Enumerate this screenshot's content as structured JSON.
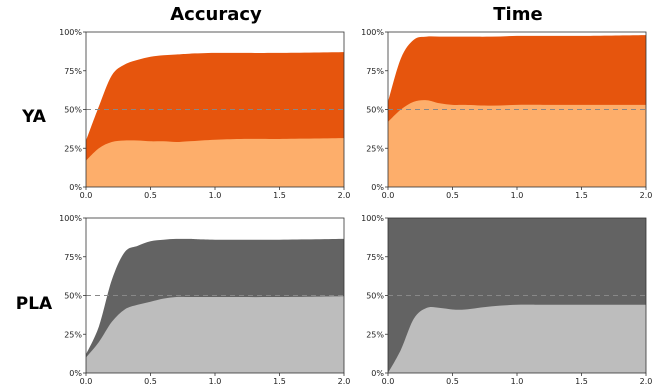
{
  "col_titles": [
    "Accuracy",
    "Time"
  ],
  "row_labels": [
    "YA",
    "PLA"
  ],
  "chart_data": [
    {
      "type": "area",
      "stacking": "percent",
      "column": "Accuracy",
      "row": "YA",
      "x": [
        0.0,
        0.1,
        0.2,
        0.3,
        0.4,
        0.5,
        0.6,
        0.7,
        0.8,
        1.0,
        1.2,
        1.5,
        2.0
      ],
      "lower": [
        17,
        25,
        29,
        30,
        30,
        29.5,
        29.5,
        29,
        29.5,
        30.5,
        31,
        31,
        31.5
      ],
      "upper": [
        30,
        52,
        72,
        79,
        82,
        84,
        85,
        85.5,
        86,
        86.5,
        86.5,
        86.5,
        87
      ],
      "colors": [
        "#fdae6b",
        "#e6550d"
      ],
      "xlim": [
        0,
        2.0
      ],
      "ylim": [
        0,
        100
      ],
      "xticks": [
        "0.0",
        "0.5",
        "1.0",
        "1.5",
        "2.0"
      ],
      "yticks": [
        "0%",
        "25%",
        "50%",
        "75%",
        "100%"
      ],
      "refline": 50
    },
    {
      "type": "area",
      "stacking": "percent",
      "column": "Time",
      "row": "YA",
      "x": [
        0.0,
        0.1,
        0.2,
        0.3,
        0.4,
        0.5,
        0.6,
        0.8,
        1.0,
        1.2,
        1.5,
        2.0
      ],
      "lower": [
        42,
        50,
        55,
        56,
        54,
        53,
        53,
        52.5,
        53,
        53,
        53,
        53
      ],
      "upper": [
        55,
        83,
        95,
        97,
        97,
        97,
        97,
        97,
        97.5,
        97.5,
        97.5,
        98
      ],
      "colors": [
        "#fdae6b",
        "#e6550d"
      ],
      "xlim": [
        0,
        2.0
      ],
      "ylim": [
        0,
        100
      ],
      "xticks": [
        "0.0",
        "0.5",
        "1.0",
        "1.5",
        "2.0"
      ],
      "yticks": [
        "0%",
        "25%",
        "50%",
        "75%",
        "100%"
      ],
      "refline": 50
    },
    {
      "type": "area",
      "stacking": "percent",
      "column": "Accuracy",
      "row": "PLA",
      "x": [
        0.0,
        0.1,
        0.2,
        0.3,
        0.4,
        0.5,
        0.6,
        0.7,
        0.8,
        1.0,
        1.5,
        2.0
      ],
      "lower": [
        10,
        20,
        33,
        41,
        44,
        46,
        48,
        49,
        49,
        49,
        49,
        49.5
      ],
      "upper": [
        12,
        30,
        60,
        78,
        82,
        85,
        86,
        86.5,
        86.5,
        86,
        86,
        86.5
      ],
      "colors": [
        "#bdbdbd",
        "#636363"
      ],
      "xlim": [
        0,
        2.0
      ],
      "ylim": [
        0,
        100
      ],
      "xticks": [
        "0.0",
        "0.5",
        "1.0",
        "1.5",
        "2.0"
      ],
      "yticks": [
        "0%",
        "25%",
        "50%",
        "75%",
        "100%"
      ],
      "refline": 50
    },
    {
      "type": "area",
      "stacking": "percent",
      "column": "Time",
      "row": "PLA",
      "x": [
        0.0,
        0.1,
        0.2,
        0.3,
        0.4,
        0.5,
        0.6,
        0.8,
        1.0,
        1.2,
        1.5,
        2.0
      ],
      "lower": [
        0,
        15,
        35,
        42,
        42,
        41,
        41,
        43,
        44,
        44,
        44,
        44
      ],
      "upper": [
        100,
        100,
        100,
        100,
        100,
        100,
        100,
        100,
        100,
        100,
        100,
        100
      ],
      "colors": [
        "#bdbdbd",
        "#636363"
      ],
      "xlim": [
        0,
        2.0
      ],
      "ylim": [
        0,
        100
      ],
      "xticks": [
        "0.0",
        "0.5",
        "1.0",
        "1.5",
        "2.0"
      ],
      "yticks": [
        "0%",
        "25%",
        "50%",
        "75%",
        "100%"
      ],
      "refline": 50
    }
  ]
}
